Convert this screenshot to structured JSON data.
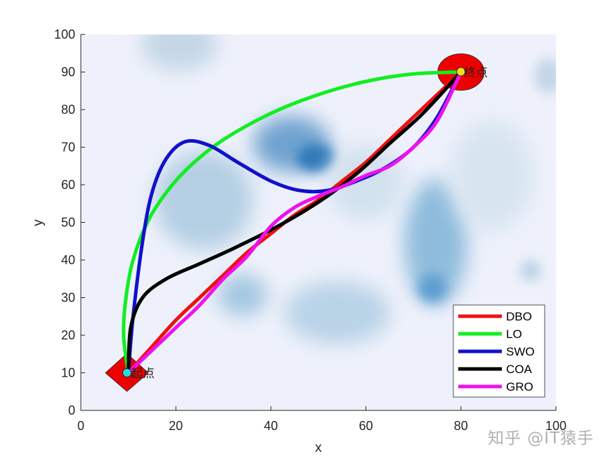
{
  "chart_data": {
    "type": "line",
    "title": "",
    "xlabel": "x",
    "ylabel": "y",
    "xlim": [
      0,
      100
    ],
    "ylim": [
      0,
      100
    ],
    "xticks": [
      0,
      20,
      40,
      60,
      80,
      100
    ],
    "yticks": [
      0,
      10,
      20,
      30,
      40,
      50,
      60,
      70,
      80,
      90,
      100
    ],
    "grid": false,
    "legend_position": "southeast",
    "background": "heatmap of blue blobs (threat/terrain field) on pale lavender",
    "start": {
      "x": 10,
      "y": 10,
      "label": "起点",
      "marker": "red diamond with cyan dot"
    },
    "goal": {
      "x": 80,
      "y": 90,
      "label": "终点",
      "marker": "red ellipse with yellow dot"
    },
    "series": [
      {
        "name": "DBO",
        "color": "#ee1111",
        "points": [
          [
            10,
            10
          ],
          [
            15,
            17
          ],
          [
            20,
            24
          ],
          [
            25,
            30
          ],
          [
            30,
            36
          ],
          [
            35,
            42
          ],
          [
            40,
            47
          ],
          [
            45,
            52
          ],
          [
            50,
            56
          ],
          [
            55,
            61
          ],
          [
            60,
            66
          ],
          [
            65,
            72
          ],
          [
            70,
            78
          ],
          [
            75,
            84
          ],
          [
            80,
            90
          ]
        ]
      },
      {
        "name": "LO",
        "color": "#11ee22",
        "points": [
          [
            10,
            10
          ],
          [
            9,
            20
          ],
          [
            9.5,
            30
          ],
          [
            11,
            40
          ],
          [
            14,
            50
          ],
          [
            18,
            58
          ],
          [
            23,
            65
          ],
          [
            30,
            72
          ],
          [
            40,
            79
          ],
          [
            50,
            84
          ],
          [
            60,
            87.5
          ],
          [
            70,
            89.5
          ],
          [
            80,
            90
          ]
        ]
      },
      {
        "name": "SWO",
        "color": "#1111cc",
        "points": [
          [
            10,
            10
          ],
          [
            11,
            25
          ],
          [
            13,
            45
          ],
          [
            15,
            58
          ],
          [
            18,
            67
          ],
          [
            22,
            71.5
          ],
          [
            27,
            70.5
          ],
          [
            33,
            66
          ],
          [
            40,
            61
          ],
          [
            46,
            58.5
          ],
          [
            52,
            58.5
          ],
          [
            58,
            61
          ],
          [
            64,
            64.5
          ],
          [
            70,
            70
          ],
          [
            75,
            78
          ],
          [
            80,
            90
          ]
        ]
      },
      {
        "name": "COA",
        "color": "#000000",
        "points": [
          [
            10,
            10
          ],
          [
            10.5,
            22
          ],
          [
            13,
            30
          ],
          [
            18,
            35
          ],
          [
            25,
            39
          ],
          [
            32,
            43
          ],
          [
            40,
            48
          ],
          [
            47,
            53
          ],
          [
            53,
            58
          ],
          [
            59,
            64
          ],
          [
            65,
            71
          ],
          [
            72,
            79
          ],
          [
            80,
            90
          ]
        ]
      },
      {
        "name": "GRO",
        "color": "#ee11ee",
        "points": [
          [
            10,
            10
          ],
          [
            15,
            16
          ],
          [
            20,
            22
          ],
          [
            25,
            28
          ],
          [
            30,
            35
          ],
          [
            35,
            41
          ],
          [
            40,
            49
          ],
          [
            45,
            54
          ],
          [
            50,
            57
          ],
          [
            55,
            59.5
          ],
          [
            60,
            62.5
          ],
          [
            65,
            65
          ],
          [
            70,
            70
          ],
          [
            75,
            77
          ],
          [
            80,
            90
          ]
        ]
      }
    ]
  },
  "legend": {
    "items": [
      {
        "label": "DBO",
        "color": "#ee1111"
      },
      {
        "label": "LO",
        "color": "#11ee22"
      },
      {
        "label": "SWO",
        "color": "#1111cc"
      },
      {
        "label": "COA",
        "color": "#000000"
      },
      {
        "label": "GRO",
        "color": "#ee11ee"
      }
    ]
  },
  "watermark": "知乎 @IT猿手"
}
